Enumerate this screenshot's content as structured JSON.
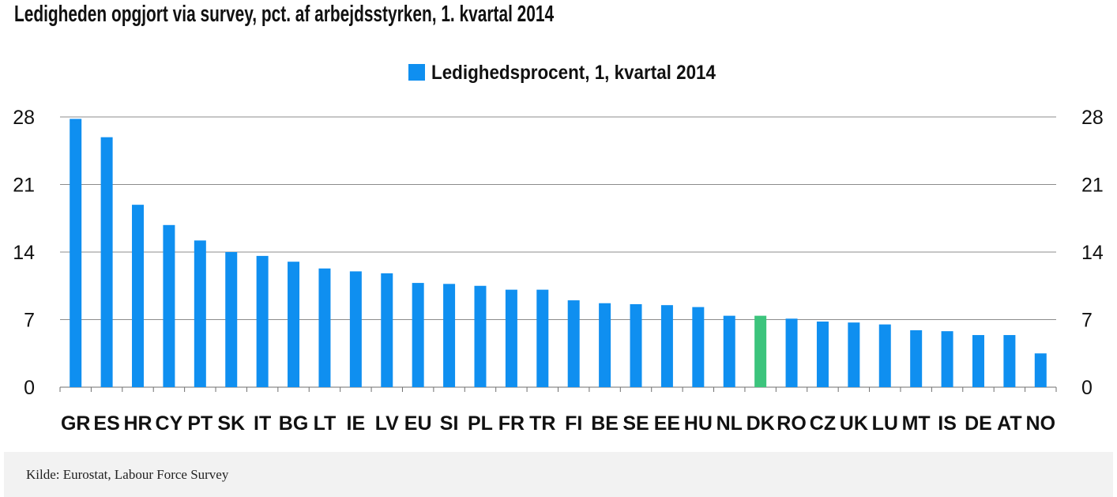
{
  "chart_data": {
    "type": "bar",
    "title": "Ledigheden opgjort via survey, pct. af arbejdsstyrken, 1. kvartal 2014",
    "legend": {
      "placement": "top-center",
      "entries": [
        "Ledighedsprocent, 1, kvartal 2014"
      ]
    },
    "categories": [
      "GR",
      "ES",
      "HR",
      "CY",
      "PT",
      "SK",
      "IT",
      "BG",
      "LT",
      "IE",
      "LV",
      "EU",
      "SI",
      "PL",
      "FR",
      "TR",
      "FI",
      "BE",
      "SE",
      "EE",
      "HU",
      "NL",
      "DK",
      "RO",
      "CZ",
      "UK",
      "LU",
      "MT",
      "IS",
      "DE",
      "AT",
      "NO"
    ],
    "series": [
      {
        "name": "Ledighedsprocent, 1, kvartal 2014",
        "color": "#0f8ff0",
        "values": [
          27.8,
          25.9,
          18.9,
          16.8,
          15.2,
          14.0,
          13.6,
          13.0,
          12.3,
          12.0,
          11.8,
          10.8,
          10.7,
          10.5,
          10.1,
          10.1,
          9.0,
          8.7,
          8.6,
          8.5,
          8.3,
          7.4,
          7.4,
          7.1,
          6.8,
          6.7,
          6.5,
          5.9,
          5.8,
          5.4,
          5.4,
          3.5
        ]
      }
    ],
    "highlight": {
      "category": "DK",
      "color": "#3cc47c"
    },
    "ylim": [
      0,
      28
    ],
    "yticks": [
      0,
      7,
      14,
      21,
      28
    ],
    "secondary_yaxis": true,
    "grid": true,
    "xlabel": "",
    "ylabel": ""
  },
  "source": "Kilde: Eurostat, Labour Force Survey"
}
